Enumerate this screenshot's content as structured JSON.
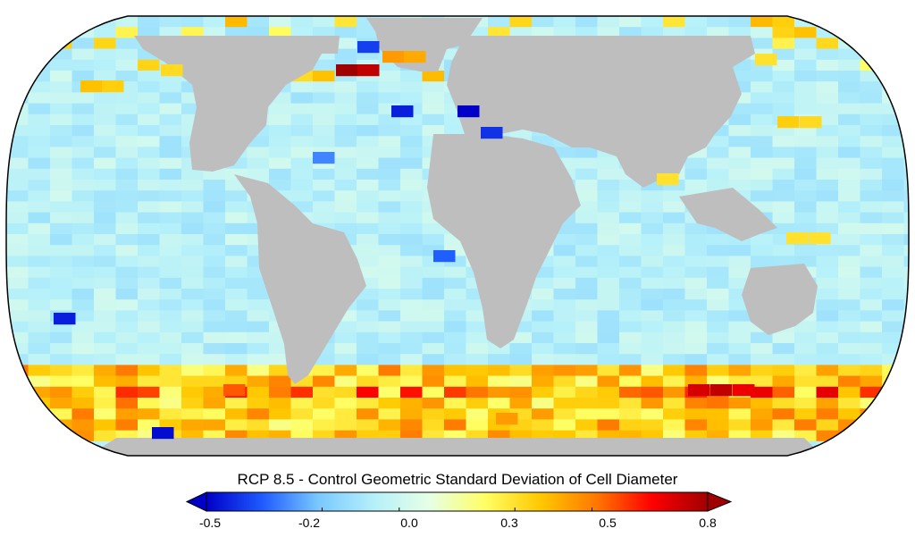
{
  "colorbar": {
    "title": "RCP 8.5 - Control Geometric Standard Deviation of Cell Diameter",
    "min": -0.5,
    "max": 0.8,
    "extend": "both",
    "tick_labels": [
      "-0.5",
      "-0.2",
      "0.0",
      "0.3",
      "0.5",
      "0.8"
    ],
    "tick_values": [
      -0.5,
      -0.2,
      0.0,
      0.3,
      0.5,
      0.8
    ]
  },
  "colors": {
    "land": "#bebebe",
    "colormap": [
      "#0000c8",
      "#1e5aff",
      "#78c8ff",
      "#b4f0fa",
      "#e6ffe6",
      "#ffff64",
      "#ffc800",
      "#ff7800",
      "#ff0000",
      "#a00000"
    ],
    "extend_low": "#0000c8",
    "extend_high": "#a00000"
  },
  "map": {
    "projection": "Robinson",
    "region": "global",
    "background_value": -0.05
  }
}
